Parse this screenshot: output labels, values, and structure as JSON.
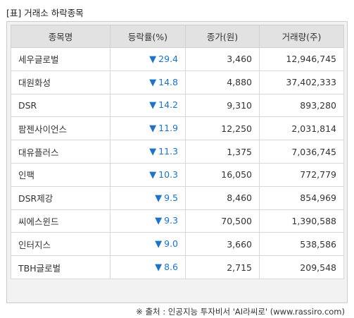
{
  "title": "[표] 거래소 하락종목",
  "table": {
    "headers": [
      "종목명",
      "등락률(%)",
      "종가(원)",
      "거래량(주)"
    ],
    "direction_marker": "▼",
    "rate_color": "#1e73c8",
    "rows": [
      {
        "name": "세우글로벌",
        "rate": "29.4",
        "close": "3,460",
        "volume": "12,946,745"
      },
      {
        "name": "대원화성",
        "rate": "14.8",
        "close": "4,880",
        "volume": "37,402,333"
      },
      {
        "name": "DSR",
        "rate": "14.2",
        "close": "9,310",
        "volume": "893,280"
      },
      {
        "name": "팜젠사이언스",
        "rate": "11.9",
        "close": "12,250",
        "volume": "2,031,814"
      },
      {
        "name": "대유플러스",
        "rate": "11.3",
        "close": "1,375",
        "volume": "7,036,745"
      },
      {
        "name": "인팩",
        "rate": "10.3",
        "close": "16,050",
        "volume": "772,779"
      },
      {
        "name": "DSR제강",
        "rate": "9.5",
        "close": "8,460",
        "volume": "854,969"
      },
      {
        "name": "씨에스윈드",
        "rate": "9.3",
        "close": "70,500",
        "volume": "1,390,588"
      },
      {
        "name": "인터지스",
        "rate": "9.0",
        "close": "3,660",
        "volume": "538,586"
      },
      {
        "name": "TBH글로벌",
        "rate": "8.6",
        "close": "2,715",
        "volume": "209,548"
      }
    ]
  },
  "source": "※ 출처 : 인공지능 투자비서 'AI라씨로' (www.rassiro.com)"
}
